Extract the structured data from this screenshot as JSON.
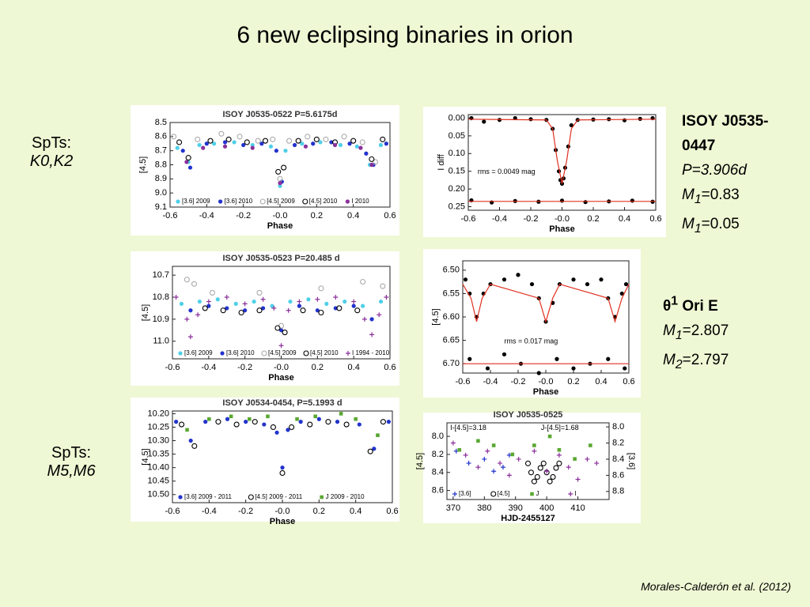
{
  "slide": {
    "title": "6 new eclipsing binaries in orion",
    "left_notes": [
      {
        "label": "SpTs:",
        "value": "K0,K2"
      },
      {
        "label": "SpTs:",
        "value": "M5,M6"
      }
    ],
    "star1": {
      "name": "ISOY J0535-0447",
      "period": "P=3.906d",
      "masses": [
        {
          "sym": "M",
          "sub": "1",
          "rest": "=0.83"
        },
        {
          "sym": "M",
          "sub": "1",
          "rest": "=0.05"
        }
      ]
    },
    "star2": {
      "sym": "θ",
      "sup": "1",
      "rest": " Ori E",
      "masses": [
        {
          "sym": "M",
          "sub": "1",
          "rest": "=2.807"
        },
        {
          "sym": "M",
          "sub": "2",
          "rest": "=2.797"
        }
      ]
    },
    "citation": "Morales-Calderón et al. (2012)"
  },
  "chart_data": [
    {
      "type": "scatter",
      "title": "ISOY J0535-0522 P=5.6175d",
      "xlabel": "Phase",
      "ylabel": "[4.5]",
      "xlim": [
        -0.6,
        0.6
      ],
      "ylim": [
        9.1,
        8.5
      ],
      "xticks": [
        -0.6,
        -0.4,
        -0.2,
        {
          "value": 0,
          "label": "-0.0"
        },
        0.2,
        0.4,
        0.6
      ],
      "yticks": [
        8.5,
        8.6,
        8.7,
        8.8,
        8.9,
        {
          "value": 9,
          "label": "9.0"
        },
        9.1
      ],
      "legend": "lower left",
      "series": [
        {
          "name": "[3.6] 2009",
          "color": "#4fd0e8",
          "marker": "dot",
          "x": [
            -0.56,
            -0.5,
            -0.44,
            -0.36,
            -0.25,
            -0.15,
            -0.05,
            0.0,
            0.03,
            0.12,
            0.22,
            0.33,
            0.42,
            0.49,
            0.55
          ],
          "values": [
            8.68,
            8.78,
            8.66,
            8.65,
            8.64,
            8.66,
            8.67,
            8.95,
            8.7,
            8.65,
            8.64,
            8.66,
            8.67,
            8.8,
            8.66
          ]
        },
        {
          "name": "[3.6] 2010",
          "color": "#2233cc",
          "marker": "dot",
          "x": [
            -0.53,
            -0.49,
            -0.4,
            -0.3,
            -0.2,
            -0.1,
            -0.02,
            0.01,
            0.08,
            0.18,
            0.28,
            0.38,
            0.47,
            0.51,
            0.58
          ],
          "values": [
            8.7,
            8.82,
            8.65,
            8.64,
            8.66,
            8.65,
            8.7,
            8.92,
            8.66,
            8.65,
            8.64,
            8.65,
            8.72,
            8.8,
            8.65
          ]
        },
        {
          "name": "[4.5] 2009",
          "color": "#aaaaaa",
          "marker": "circle",
          "x": [
            -0.58,
            -0.45,
            -0.32,
            -0.22,
            -0.12,
            -0.04,
            0.0,
            0.05,
            0.15,
            0.25,
            0.35,
            0.45,
            0.52
          ],
          "values": [
            8.6,
            8.62,
            8.58,
            8.6,
            8.63,
            8.62,
            8.9,
            8.63,
            8.6,
            8.62,
            8.6,
            8.64,
            8.78
          ]
        },
        {
          "name": "[4.5] 2010",
          "color": "#000000",
          "marker": "circle",
          "x": [
            -0.55,
            -0.5,
            -0.38,
            -0.28,
            -0.18,
            -0.08,
            -0.01,
            0.02,
            0.1,
            0.2,
            0.3,
            0.4,
            0.5,
            0.56
          ],
          "values": [
            8.64,
            8.75,
            8.63,
            8.62,
            8.64,
            8.63,
            8.85,
            8.82,
            8.63,
            8.62,
            8.64,
            8.63,
            8.76,
            8.62
          ]
        },
        {
          "name": "I 2010",
          "color": "#8b2f9b",
          "marker": "dot",
          "x": [
            -0.51,
            -0.42,
            -0.3,
            -0.15,
            0.0,
            0.14,
            0.3,
            0.44,
            0.5
          ],
          "values": [
            8.78,
            8.68,
            8.67,
            8.68,
            8.93,
            8.67,
            8.66,
            8.68,
            8.8
          ]
        }
      ]
    },
    {
      "type": "scatter",
      "xlabel": "Phase",
      "ylabel": "I diff",
      "xlim": [
        -0.6,
        0.6
      ],
      "ylim": [
        0.26,
        -0.01
      ],
      "xticks": [
        -0.6,
        -0.4,
        -0.2,
        {
          "value": 0,
          "label": "-0.0"
        },
        0.2,
        0.4,
        0.6
      ],
      "yticks": [
        {
          "value": 0,
          "label": "0.00"
        },
        0.05,
        {
          "value": 0.1,
          "label": "0.10"
        },
        0.15,
        {
          "value": 0.2,
          "label": "0.20"
        },
        0.25
      ],
      "annotations": [
        "rms = 0.0049 mag"
      ],
      "series": [
        {
          "color": "#000000",
          "marker": "dot",
          "x": [
            -0.58,
            -0.5,
            -0.4,
            -0.3,
            -0.2,
            -0.1,
            -0.06,
            -0.04,
            -0.02,
            -0.01,
            0,
            0.01,
            0.02,
            0.04,
            0.06,
            0.1,
            0.2,
            0.3,
            0.4,
            0.5,
            0.58
          ],
          "values": [
            0.0,
            0.01,
            0.005,
            0.0,
            0.003,
            0.005,
            0.03,
            0.09,
            0.15,
            0.175,
            0.185,
            0.17,
            0.14,
            0.08,
            0.02,
            0.005,
            0.004,
            0.003,
            0.006,
            0.002,
            0.0
          ]
        },
        {
          "color": "#000000",
          "marker": "dot",
          "x": [
            -0.58,
            -0.45,
            -0.3,
            -0.15,
            0,
            0.15,
            0.3,
            0.45,
            0.58
          ],
          "values": [
            0.232,
            0.238,
            0.234,
            0.236,
            0.233,
            0.237,
            0.235,
            0.233,
            0.236
          ]
        },
        {
          "color": "#e03020",
          "marker": "line",
          "x": [
            -0.6,
            -0.1,
            -0.06,
            -0.03,
            0,
            0.03,
            0.06,
            0.1,
            0.6
          ],
          "values": [
            0.003,
            0.005,
            0.03,
            0.12,
            0.185,
            0.12,
            0.03,
            0.005,
            0.003
          ]
        },
        {
          "color": "#e03020",
          "marker": "line",
          "x": [
            -0.6,
            0.6
          ],
          "values": [
            0.235,
            0.235
          ]
        }
      ]
    },
    {
      "type": "scatter",
      "title": "ISOY J0535-0523 P=20.485 d",
      "xlabel": "Phase",
      "ylabel": "[4.5]",
      "xlim": [
        -0.6,
        0.6
      ],
      "ylim": [
        11.08,
        10.66
      ],
      "xticks": [
        -0.6,
        -0.4,
        -0.2,
        {
          "value": 0,
          "label": "-0.0"
        },
        0.2,
        0.4,
        0.6
      ],
      "yticks": [
        10.7,
        10.8,
        10.9,
        {
          "value": 11,
          "label": "11.0"
        }
      ],
      "legend": "lower left",
      "series": [
        {
          "name": "[3.6] 2009",
          "color": "#4fd0e8",
          "marker": "dot",
          "x": [
            -0.55,
            -0.45,
            -0.35,
            -0.25,
            -0.15,
            -0.05,
            0.05,
            0.15,
            0.25,
            0.35,
            0.45,
            0.55
          ],
          "values": [
            10.83,
            10.82,
            10.81,
            10.83,
            10.82,
            10.84,
            10.82,
            10.81,
            10.83,
            10.82,
            10.84,
            10.82
          ]
        },
        {
          "name": "[3.6] 2010",
          "color": "#2233cc",
          "marker": "dot",
          "x": [
            -0.5,
            -0.4,
            -0.3,
            -0.2,
            -0.1,
            0,
            0.1,
            0.2,
            0.3,
            0.4,
            0.5
          ],
          "values": [
            10.86,
            10.84,
            10.85,
            10.86,
            10.85,
            10.95,
            10.84,
            10.86,
            10.85,
            10.84,
            10.9
          ]
        },
        {
          "name": "[4.5] 2009",
          "color": "#aaaaaa",
          "marker": "circle",
          "x": [
            -0.52,
            -0.48,
            -0.38,
            -0.12,
            0.0,
            0.22,
            0.45,
            0.56
          ],
          "values": [
            10.72,
            10.74,
            10.78,
            10.78,
            10.93,
            10.76,
            10.73,
            10.75
          ]
        },
        {
          "name": "[4.5] 2010",
          "color": "#000000",
          "marker": "circle",
          "x": [
            -0.42,
            -0.32,
            -0.22,
            -0.12,
            -0.02,
            0.02,
            0.12,
            0.22,
            0.32,
            0.42
          ],
          "values": [
            10.85,
            10.86,
            10.87,
            10.86,
            10.94,
            10.96,
            10.86,
            10.87,
            10.85,
            10.86
          ]
        },
        {
          "name": "I 1994 - 2010",
          "color": "#8b2f9b",
          "marker": "plus",
          "x": [
            -0.58,
            -0.52,
            -0.5,
            -0.46,
            -0.4,
            -0.3,
            -0.2,
            -0.1,
            -0.04,
            0,
            0.04,
            0.1,
            0.2,
            0.3,
            0.4,
            0.46,
            0.5,
            0.54,
            0.58
          ],
          "values": [
            10.8,
            10.9,
            10.98,
            10.88,
            10.82,
            10.8,
            10.83,
            10.81,
            10.85,
            11.02,
            10.86,
            10.82,
            10.81,
            10.8,
            10.82,
            10.9,
            10.97,
            10.88,
            10.8
          ]
        }
      ]
    },
    {
      "type": "scatter",
      "xlabel": "Phase",
      "ylabel": "[4.5]",
      "xlim": [
        -0.6,
        0.6
      ],
      "ylim": [
        6.72,
        6.48
      ],
      "xticks": [
        -0.6,
        -0.4,
        -0.2,
        {
          "value": 0,
          "label": "-0.0"
        },
        0.2,
        0.4,
        0.6
      ],
      "yticks": [
        {
          "value": 6.5,
          "label": "6.50"
        },
        6.55,
        {
          "value": 6.6,
          "label": "6.60"
        },
        6.65,
        {
          "value": 6.7,
          "label": "6.70"
        }
      ],
      "annotations": [
        "rms = 0.017 mag"
      ],
      "series": [
        {
          "color": "#000000",
          "marker": "dot",
          "x": [
            -0.58,
            -0.55,
            -0.5,
            -0.45,
            -0.4,
            -0.3,
            -0.2,
            -0.1,
            -0.05,
            0,
            0.05,
            0.1,
            0.2,
            0.3,
            0.4,
            0.45,
            0.5,
            0.55,
            0.58
          ],
          "values": [
            6.52,
            6.55,
            6.6,
            6.55,
            6.53,
            6.52,
            6.51,
            6.53,
            6.56,
            6.61,
            6.57,
            6.53,
            6.52,
            6.53,
            6.52,
            6.56,
            6.6,
            6.55,
            6.53
          ]
        },
        {
          "color": "#000000",
          "marker": "dot",
          "x": [
            -0.55,
            -0.42,
            -0.3,
            -0.18,
            -0.05,
            0.08,
            0.2,
            0.32,
            0.45,
            0.57
          ],
          "values": [
            6.69,
            6.71,
            6.68,
            6.7,
            6.72,
            6.69,
            6.71,
            6.7,
            6.69,
            6.71
          ]
        },
        {
          "color": "#e03020",
          "marker": "line",
          "x": [
            -0.6,
            -0.54,
            -0.5,
            -0.46,
            -0.4,
            -0.05,
            0,
            0.05,
            0.1,
            0.45,
            0.5,
            0.55,
            0.6
          ],
          "values": [
            6.53,
            6.56,
            6.61,
            6.56,
            6.53,
            6.56,
            6.61,
            6.56,
            6.53,
            6.56,
            6.61,
            6.56,
            6.53
          ]
        },
        {
          "color": "#e03020",
          "marker": "line",
          "x": [
            -0.6,
            0.6
          ],
          "values": [
            6.7,
            6.7
          ]
        }
      ]
    },
    {
      "type": "scatter",
      "title": "ISOY J0534-0454, P=5.1993 d",
      "xlabel": "Phase",
      "ylabel": "[4.5]",
      "xlim": [
        -0.6,
        0.6
      ],
      "ylim": [
        10.53,
        10.19
      ],
      "xticks": [
        -0.6,
        -0.4,
        -0.2,
        {
          "value": 0,
          "label": "-0.0"
        },
        0.2,
        0.4,
        0.6
      ],
      "yticks": [
        {
          "value": 10.2,
          "label": "10.20"
        },
        10.25,
        {
          "value": 10.3,
          "label": "10.30"
        },
        10.35,
        {
          "value": 10.4,
          "label": "10.40"
        },
        10.45,
        {
          "value": 10.5,
          "label": "10.50"
        }
      ],
      "legend": "lower left",
      "series": [
        {
          "name": "[3.6] 2009 - 2011",
          "color": "#2233cc",
          "marker": "dot",
          "x": [
            -0.58,
            -0.5,
            -0.42,
            -0.3,
            -0.2,
            -0.1,
            -0.03,
            0,
            0.03,
            0.1,
            0.2,
            0.3,
            0.42,
            0.5,
            0.58
          ],
          "values": [
            10.23,
            10.3,
            10.23,
            10.22,
            10.23,
            10.24,
            10.27,
            10.4,
            10.26,
            10.23,
            10.22,
            10.23,
            10.24,
            10.33,
            10.23
          ]
        },
        {
          "name": "[4.5] 2009 - 2011",
          "color": "#000000",
          "marker": "circle",
          "x": [
            -0.55,
            -0.48,
            -0.35,
            -0.25,
            -0.15,
            -0.05,
            0.0,
            0.05,
            0.15,
            0.25,
            0.35,
            0.48,
            0.55
          ],
          "values": [
            10.24,
            10.32,
            10.23,
            10.24,
            10.23,
            10.25,
            10.42,
            10.25,
            10.24,
            10.23,
            10.24,
            10.34,
            10.23
          ]
        },
        {
          "name": "J 2009 - 2010",
          "color": "#5aa832",
          "marker": "square",
          "x": [
            -0.52,
            -0.4,
            -0.28,
            -0.18,
            -0.08,
            0.08,
            0.18,
            0.32,
            0.4,
            0.52
          ],
          "values": [
            10.26,
            10.22,
            10.21,
            10.22,
            10.21,
            10.22,
            10.21,
            10.2,
            10.22,
            10.28
          ]
        }
      ]
    },
    {
      "type": "scatter",
      "title": "ISOY J0535-0525",
      "xlabel": "HJD-2455127",
      "ylabel": "[4.5]",
      "y2label": "[3.6]",
      "xlim": [
        368,
        420
      ],
      "ylim": [
        8.7,
        7.85
      ],
      "y2lim": [
        8.9,
        7.95
      ],
      "xticks": [
        370,
        380,
        390,
        400,
        410
      ],
      "yticks": [
        {
          "value": 8,
          "label": "8.0"
        },
        8.2,
        8.4,
        8.6
      ],
      "y2ticks": [
        {
          "value": 8,
          "label": "8.0"
        },
        8.2,
        8.4,
        8.6,
        8.8
      ],
      "annotations": [
        "I-[4.5]=3.18",
        "J-[4.5]=1.68"
      ],
      "legend": "lower left",
      "series": [
        {
          "name": "[3.6]",
          "color": "#2233cc",
          "marker": "plus",
          "axis": "y2",
          "x": [
            371,
            375,
            380,
            383,
            386,
            388
          ],
          "values": [
            8.3,
            8.45,
            8.4,
            8.55,
            8.5,
            8.35
          ]
        },
        {
          "name": "[4.5]",
          "color": "#000000",
          "marker": "circle",
          "x": [
            394,
            395,
            396,
            397,
            398,
            399,
            400,
            401,
            402,
            403,
            404
          ],
          "values": [
            8.3,
            8.4,
            8.5,
            8.45,
            8.35,
            8.3,
            8.4,
            8.5,
            8.45,
            8.35,
            8.3
          ]
        },
        {
          "name": "J",
          "color": "#5aa832",
          "marker": "square",
          "x": [
            372,
            378,
            383,
            389,
            396,
            401,
            404,
            409,
            414
          ],
          "values": [
            8.15,
            8.05,
            8.1,
            8.2,
            8.1,
            8.0,
            8.15,
            8.25,
            8.1
          ]
        },
        {
          "name": "I",
          "color": "#8b2f9b",
          "marker": "plus",
          "axis": "y2",
          "x": [
            370,
            374,
            378,
            381,
            385,
            388,
            391,
            396,
            400,
            404,
            407,
            410,
            413,
            416
          ],
          "values": [
            8.2,
            8.35,
            8.5,
            8.3,
            8.45,
            8.6,
            8.4,
            8.3,
            8.55,
            8.35,
            8.5,
            8.65,
            8.4,
            8.45
          ]
        }
      ]
    }
  ]
}
